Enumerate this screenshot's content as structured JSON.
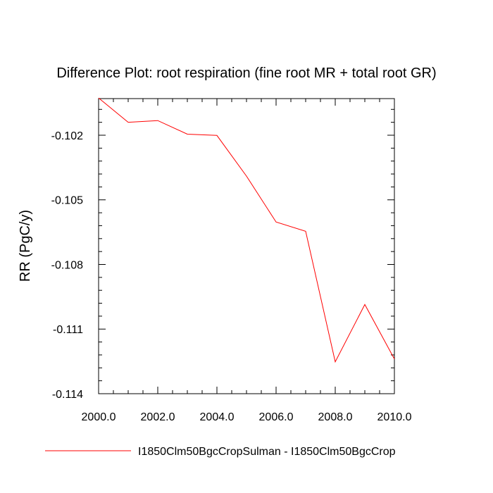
{
  "chart_data": {
    "type": "line",
    "title": "Difference Plot: root respiration (fine root MR + total root GR)",
    "ylabel": "RR  (PgC/y)",
    "xlabel": "",
    "xlim": [
      2000.0,
      2010.0
    ],
    "ylim": [
      -0.114,
      -0.1003
    ],
    "x_ticks": [
      2000.0,
      2002.0,
      2004.0,
      2006.0,
      2008.0,
      2010.0
    ],
    "x_tick_labels": [
      "2000.0",
      "2002.0",
      "2004.0",
      "2006.0",
      "2008.0",
      "2010.0"
    ],
    "y_ticks": [
      -0.102,
      -0.105,
      -0.108,
      -0.111,
      -0.114
    ],
    "y_tick_labels": [
      "-0.102",
      "-0.105",
      "-0.108",
      "-0.111",
      "-0.114"
    ],
    "legend_position": "bottom",
    "series": [
      {
        "name": "I1850Clm50BgcCropSulman - I1850Clm50BgcCrop",
        "color": "#ff0000",
        "x": [
          2000,
          2001,
          2002,
          2003,
          2004,
          2005,
          2006,
          2007,
          2008,
          2009,
          2010
        ],
        "values": [
          -0.10027,
          -0.1014,
          -0.10132,
          -0.10195,
          -0.10201,
          -0.1039,
          -0.10603,
          -0.10646,
          -0.11252,
          -0.10986,
          -0.11239
        ]
      }
    ]
  }
}
